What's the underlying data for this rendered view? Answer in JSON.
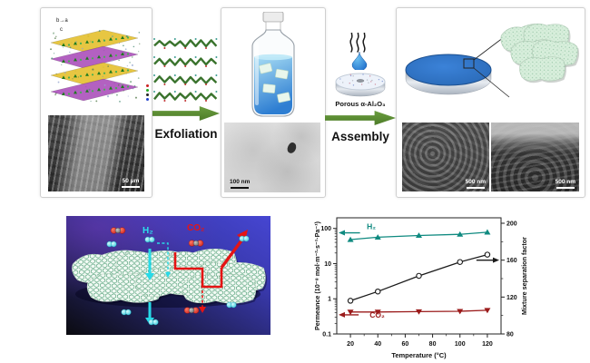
{
  "panel_crystal": {
    "axis_ba": "b→a",
    "axis_c": "c",
    "sem_scale_label": "50 μm"
  },
  "exfoliation": {
    "label": "Exfoliation",
    "arrow_color": "#5b8c33"
  },
  "panel_solution": {
    "tem_scale_label": "100 nm"
  },
  "assembly": {
    "steam_icon": "steam-lines",
    "droplet_icon": "water-droplet",
    "support_label": "Porous α-Al₂O₃",
    "label": "Assembly"
  },
  "panel_membrane": {
    "sem_scale_label_left": "500 nm",
    "sem_scale_label_right": "500 nm"
  },
  "separation_schematic": {
    "h2_label": "H₂",
    "co2_label": "CO₂",
    "h2_color": "#2ae0ec",
    "co2_color": "#e81414"
  },
  "colors": {
    "arrow_green": "#5b8c33",
    "membrane_blue": "#2d72c4",
    "h2_series": "#0f8a80",
    "co2_series": "#9b1b1b",
    "separation_series": "#1a1a1a"
  },
  "chart_data": {
    "type": "line",
    "x_label": "Temperature (°C)",
    "y_left_label": "Permeance (10⁻⁸ mol·m⁻²·s⁻¹·Pa⁻¹)",
    "y_right_label": "Mixture separation factor",
    "x": [
      20,
      40,
      70,
      100,
      120
    ],
    "x_range": [
      10,
      130
    ],
    "x_ticks": [
      20,
      40,
      60,
      80,
      100,
      120
    ],
    "x_minor_ticks": [
      30,
      50,
      70,
      90,
      110
    ],
    "y_left_scale": "log",
    "y_left_range": [
      0.1,
      200
    ],
    "y_left_ticks": [
      0.1,
      1,
      10,
      100
    ],
    "y_right_range": [
      80,
      200
    ],
    "y_right_ticks": [
      80,
      120,
      160,
      200
    ],
    "y_right_minor_ticks": [
      100,
      140,
      180
    ],
    "grid": false,
    "legend_position": "none",
    "series": [
      {
        "name": "H₂",
        "axis": "left",
        "color": "#0f8a80",
        "marker": "triangle-up",
        "values": [
          48,
          56,
          63,
          68,
          78
        ]
      },
      {
        "name": "CO₂",
        "axis": "left",
        "color": "#9b1b1b",
        "marker": "triangle-down",
        "values": [
          0.42,
          0.42,
          0.43,
          0.44,
          0.47
        ]
      },
      {
        "name": "Mixture separation factor",
        "axis": "right",
        "color": "#1a1a1a",
        "marker": "circle-open",
        "values": [
          116,
          126,
          143,
          158,
          166
        ]
      }
    ],
    "annotations": [
      {
        "text": "H₂",
        "color": "#0f8a80",
        "axis": "left",
        "text_t": 32,
        "text_v": 95,
        "arrow_v": 75,
        "arrow_tail_t": 27,
        "arrow_dir": "left"
      },
      {
        "text": "CO₂",
        "color": "#9b1b1b",
        "axis": "left",
        "text_t": 34,
        "text_v": 0.29,
        "arrow_v": 0.35,
        "arrow_tail_t": 26,
        "arrow_dir": "left"
      },
      {
        "text": "",
        "color": "#1a1a1a",
        "axis": "right",
        "arrow_v": 160,
        "arrow_tail_t": 112,
        "arrow_dir": "right"
      }
    ]
  }
}
